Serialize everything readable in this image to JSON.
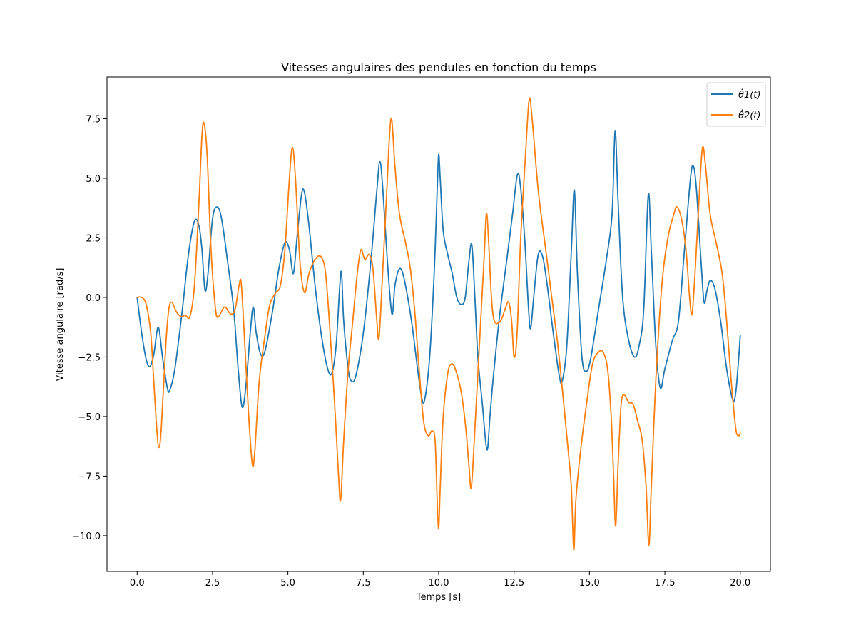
{
  "chart_data": {
    "type": "line",
    "title": "Vitesses angulaires des pendules en fonction du temps",
    "xlabel": "Temps [s]",
    "ylabel": "Vitesse angulaire [rad/s]",
    "xlim": [
      -1.0,
      21.0
    ],
    "ylim": [
      -11.5,
      9.25
    ],
    "xticks": [
      0.0,
      2.5,
      5.0,
      7.5,
      10.0,
      12.5,
      15.0,
      17.5,
      20.0
    ],
    "xtick_labels": [
      "0.0",
      "2.5",
      "5.0",
      "7.5",
      "10.0",
      "12.5",
      "15.0",
      "17.5",
      "20.0"
    ],
    "yticks": [
      -10.0,
      -7.5,
      -5.0,
      -2.5,
      0.0,
      2.5,
      5.0,
      7.5
    ],
    "ytick_labels": [
      "−10.0",
      "−7.5",
      "−5.0",
      "−2.5",
      "0.0",
      "2.5",
      "5.0",
      "7.5"
    ],
    "grid": false,
    "legend_position": "top-right",
    "series": [
      {
        "name": "θ̇1(t)",
        "color": "#1f77b4",
        "points": [
          [
            0.0,
            0.0
          ],
          [
            0.15,
            -1.5
          ],
          [
            0.3,
            -2.6
          ],
          [
            0.42,
            -2.9
          ],
          [
            0.55,
            -2.4
          ],
          [
            0.7,
            -1.25
          ],
          [
            0.85,
            -2.6
          ],
          [
            1.0,
            -3.8
          ],
          [
            1.08,
            -3.9
          ],
          [
            1.25,
            -3.0
          ],
          [
            1.5,
            -0.5
          ],
          [
            1.7,
            1.8
          ],
          [
            1.9,
            3.2
          ],
          [
            2.05,
            3.0
          ],
          [
            2.15,
            2.0
          ],
          [
            2.25,
            0.3
          ],
          [
            2.35,
            1.0
          ],
          [
            2.5,
            3.3
          ],
          [
            2.65,
            3.8
          ],
          [
            2.8,
            3.3
          ],
          [
            3.0,
            1.5
          ],
          [
            3.2,
            -0.5
          ],
          [
            3.35,
            -3.0
          ],
          [
            3.48,
            -4.6
          ],
          [
            3.6,
            -3.8
          ],
          [
            3.75,
            -1.5
          ],
          [
            3.85,
            -0.4
          ],
          [
            3.95,
            -1.5
          ],
          [
            4.1,
            -2.4
          ],
          [
            4.25,
            -2.2
          ],
          [
            4.5,
            -0.5
          ],
          [
            4.7,
            1.2
          ],
          [
            4.9,
            2.3
          ],
          [
            5.05,
            2.0
          ],
          [
            5.18,
            1.0
          ],
          [
            5.3,
            2.5
          ],
          [
            5.45,
            4.3
          ],
          [
            5.55,
            4.4
          ],
          [
            5.7,
            3.0
          ],
          [
            5.9,
            0.5
          ],
          [
            6.1,
            -1.5
          ],
          [
            6.3,
            -2.9
          ],
          [
            6.45,
            -3.2
          ],
          [
            6.6,
            -2.0
          ],
          [
            6.72,
            0.5
          ],
          [
            6.78,
            1.0
          ],
          [
            6.85,
            -1.0
          ],
          [
            7.0,
            -3.0
          ],
          [
            7.1,
            -3.5
          ],
          [
            7.25,
            -3.3
          ],
          [
            7.5,
            -1.5
          ],
          [
            7.75,
            1.5
          ],
          [
            7.95,
            4.5
          ],
          [
            8.05,
            5.7
          ],
          [
            8.15,
            4.5
          ],
          [
            8.3,
            1.5
          ],
          [
            8.45,
            -0.7
          ],
          [
            8.55,
            0.5
          ],
          [
            8.7,
            1.2
          ],
          [
            8.85,
            0.8
          ],
          [
            9.1,
            -1.0
          ],
          [
            9.3,
            -3.0
          ],
          [
            9.45,
            -4.3
          ],
          [
            9.55,
            -4.2
          ],
          [
            9.7,
            -2.5
          ],
          [
            9.85,
            1.0
          ],
          [
            9.95,
            4.5
          ],
          [
            10.0,
            6.0
          ],
          [
            10.05,
            5.0
          ],
          [
            10.15,
            2.8
          ],
          [
            10.3,
            1.8
          ],
          [
            10.45,
            1.0
          ],
          [
            10.6,
            0.0
          ],
          [
            10.75,
            -0.3
          ],
          [
            10.88,
            0.0
          ],
          [
            11.0,
            1.5
          ],
          [
            11.1,
            2.2
          ],
          [
            11.2,
            0.0
          ],
          [
            11.3,
            -2.5
          ],
          [
            11.45,
            -4.5
          ],
          [
            11.6,
            -6.4
          ],
          [
            11.7,
            -5.0
          ],
          [
            11.8,
            -3.5
          ],
          [
            12.0,
            -1.0
          ],
          [
            12.25,
            1.5
          ],
          [
            12.45,
            3.5
          ],
          [
            12.6,
            5.1
          ],
          [
            12.7,
            4.8
          ],
          [
            12.85,
            2.5
          ],
          [
            12.98,
            -0.5
          ],
          [
            13.05,
            -1.3
          ],
          [
            13.15,
            0.0
          ],
          [
            13.3,
            1.8
          ],
          [
            13.45,
            1.7
          ],
          [
            13.6,
            0.5
          ],
          [
            13.8,
            -1.5
          ],
          [
            14.0,
            -3.3
          ],
          [
            14.1,
            -3.5
          ],
          [
            14.25,
            -2.0
          ],
          [
            14.4,
            2.0
          ],
          [
            14.5,
            4.5
          ],
          [
            14.6,
            1.0
          ],
          [
            14.75,
            -2.5
          ],
          [
            14.9,
            -3.1
          ],
          [
            15.05,
            -2.5
          ],
          [
            15.3,
            -0.5
          ],
          [
            15.55,
            1.5
          ],
          [
            15.75,
            3.5
          ],
          [
            15.85,
            7.0
          ],
          [
            15.95,
            4.0
          ],
          [
            16.1,
            0.0
          ],
          [
            16.3,
            -1.8
          ],
          [
            16.5,
            -2.5
          ],
          [
            16.65,
            -2.0
          ],
          [
            16.8,
            -0.5
          ],
          [
            16.95,
            4.3
          ],
          [
            17.05,
            2.0
          ],
          [
            17.2,
            -2.0
          ],
          [
            17.35,
            -3.8
          ],
          [
            17.5,
            -3.0
          ],
          [
            17.75,
            -1.8
          ],
          [
            17.95,
            -1.0
          ],
          [
            18.15,
            2.0
          ],
          [
            18.35,
            5.0
          ],
          [
            18.45,
            5.5
          ],
          [
            18.55,
            4.5
          ],
          [
            18.7,
            1.5
          ],
          [
            18.8,
            -0.2
          ],
          [
            18.9,
            0.3
          ],
          [
            19.0,
            0.7
          ],
          [
            19.15,
            0.4
          ],
          [
            19.35,
            -1.0
          ],
          [
            19.55,
            -3.0
          ],
          [
            19.75,
            -4.3
          ],
          [
            19.85,
            -4.0
          ],
          [
            19.95,
            -2.5
          ],
          [
            20.0,
            -1.6
          ]
        ]
      },
      {
        "name": "θ̇2(t)",
        "color": "#ff7f0e",
        "points": [
          [
            0.0,
            0.0
          ],
          [
            0.15,
            0.0
          ],
          [
            0.3,
            -0.3
          ],
          [
            0.45,
            -1.5
          ],
          [
            0.55,
            -3.5
          ],
          [
            0.65,
            -5.5
          ],
          [
            0.72,
            -6.3
          ],
          [
            0.8,
            -5.5
          ],
          [
            0.95,
            -2.0
          ],
          [
            1.05,
            -0.5
          ],
          [
            1.15,
            -0.2
          ],
          [
            1.3,
            -0.6
          ],
          [
            1.45,
            -0.8
          ],
          [
            1.6,
            -0.75
          ],
          [
            1.75,
            -0.8
          ],
          [
            1.9,
            0.5
          ],
          [
            2.05,
            4.0
          ],
          [
            2.15,
            6.8
          ],
          [
            2.22,
            7.3
          ],
          [
            2.32,
            6.0
          ],
          [
            2.45,
            2.0
          ],
          [
            2.6,
            -0.5
          ],
          [
            2.7,
            -0.8
          ],
          [
            2.9,
            -0.4
          ],
          [
            3.1,
            -0.7
          ],
          [
            3.25,
            -0.5
          ],
          [
            3.38,
            0.5
          ],
          [
            3.45,
            0.6
          ],
          [
            3.55,
            -1.5
          ],
          [
            3.7,
            -5.0
          ],
          [
            3.82,
            -7.0
          ],
          [
            3.9,
            -6.5
          ],
          [
            4.05,
            -3.5
          ],
          [
            4.25,
            -1.5
          ],
          [
            4.4,
            -0.3
          ],
          [
            4.6,
            0.2
          ],
          [
            4.75,
            0.5
          ],
          [
            4.9,
            2.0
          ],
          [
            5.05,
            5.0
          ],
          [
            5.15,
            6.3
          ],
          [
            5.25,
            5.0
          ],
          [
            5.4,
            1.5
          ],
          [
            5.55,
            0.2
          ],
          [
            5.7,
            1.0
          ],
          [
            5.9,
            1.6
          ],
          [
            6.1,
            1.7
          ],
          [
            6.25,
            1.0
          ],
          [
            6.4,
            -1.5
          ],
          [
            6.55,
            -4.5
          ],
          [
            6.68,
            -7.5
          ],
          [
            6.75,
            -8.5
          ],
          [
            6.85,
            -6.0
          ],
          [
            7.0,
            -3.0
          ],
          [
            7.15,
            -1.0
          ],
          [
            7.3,
            1.0
          ],
          [
            7.42,
            2.0
          ],
          [
            7.55,
            1.6
          ],
          [
            7.7,
            1.8
          ],
          [
            7.82,
            1.2
          ],
          [
            7.95,
            -1.0
          ],
          [
            8.02,
            -1.7
          ],
          [
            8.12,
            0.5
          ],
          [
            8.28,
            4.5
          ],
          [
            8.38,
            7.0
          ],
          [
            8.45,
            7.4
          ],
          [
            8.55,
            5.5
          ],
          [
            8.7,
            3.5
          ],
          [
            8.9,
            2.3
          ],
          [
            9.05,
            1.3
          ],
          [
            9.2,
            -0.5
          ],
          [
            9.35,
            -3.0
          ],
          [
            9.5,
            -5.2
          ],
          [
            9.65,
            -5.8
          ],
          [
            9.78,
            -5.6
          ],
          [
            9.88,
            -6.0
          ],
          [
            9.95,
            -8.5
          ],
          [
            10.0,
            -9.7
          ],
          [
            10.05,
            -8.0
          ],
          [
            10.15,
            -5.0
          ],
          [
            10.3,
            -3.2
          ],
          [
            10.42,
            -2.8
          ],
          [
            10.55,
            -3.0
          ],
          [
            10.75,
            -4.0
          ],
          [
            10.9,
            -5.5
          ],
          [
            11.0,
            -7.0
          ],
          [
            11.08,
            -8.0
          ],
          [
            11.18,
            -6.0
          ],
          [
            11.35,
            -2.0
          ],
          [
            11.5,
            1.5
          ],
          [
            11.58,
            3.5
          ],
          [
            11.65,
            2.5
          ],
          [
            11.75,
            0.0
          ],
          [
            11.85,
            -1.0
          ],
          [
            12.05,
            -1.0
          ],
          [
            12.2,
            -0.5
          ],
          [
            12.32,
            -0.2
          ],
          [
            12.42,
            -1.0
          ],
          [
            12.5,
            -2.5
          ],
          [
            12.6,
            -1.5
          ],
          [
            12.72,
            2.5
          ],
          [
            12.88,
            6.0
          ],
          [
            13.0,
            8.3
          ],
          [
            13.1,
            7.5
          ],
          [
            13.3,
            4.5
          ],
          [
            13.55,
            2.0
          ],
          [
            13.75,
            0.0
          ],
          [
            13.95,
            -2.0
          ],
          [
            14.15,
            -4.5
          ],
          [
            14.3,
            -6.5
          ],
          [
            14.4,
            -8.0
          ],
          [
            14.48,
            -10.6
          ],
          [
            14.55,
            -8.5
          ],
          [
            14.7,
            -6.5
          ],
          [
            14.9,
            -4.5
          ],
          [
            15.1,
            -2.8
          ],
          [
            15.3,
            -2.3
          ],
          [
            15.45,
            -2.3
          ],
          [
            15.6,
            -3.0
          ],
          [
            15.72,
            -5.0
          ],
          [
            15.8,
            -7.5
          ],
          [
            15.87,
            -9.6
          ],
          [
            15.95,
            -7.0
          ],
          [
            16.05,
            -4.5
          ],
          [
            16.15,
            -4.1
          ],
          [
            16.3,
            -4.4
          ],
          [
            16.45,
            -4.5
          ],
          [
            16.6,
            -5.2
          ],
          [
            16.75,
            -6.0
          ],
          [
            16.88,
            -8.0
          ],
          [
            16.97,
            -10.4
          ],
          [
            17.05,
            -8.0
          ],
          [
            17.2,
            -3.5
          ],
          [
            17.4,
            0.5
          ],
          [
            17.6,
            2.5
          ],
          [
            17.8,
            3.5
          ],
          [
            17.9,
            3.8
          ],
          [
            18.05,
            3.3
          ],
          [
            18.2,
            2.0
          ],
          [
            18.32,
            0.0
          ],
          [
            18.4,
            -0.7
          ],
          [
            18.5,
            1.0
          ],
          [
            18.65,
            4.5
          ],
          [
            18.75,
            6.3
          ],
          [
            18.85,
            5.5
          ],
          [
            19.0,
            3.5
          ],
          [
            19.2,
            2.3
          ],
          [
            19.4,
            1.0
          ],
          [
            19.55,
            -1.0
          ],
          [
            19.7,
            -3.5
          ],
          [
            19.85,
            -5.5
          ],
          [
            19.95,
            -5.8
          ],
          [
            20.0,
            -5.7
          ]
        ]
      }
    ]
  }
}
